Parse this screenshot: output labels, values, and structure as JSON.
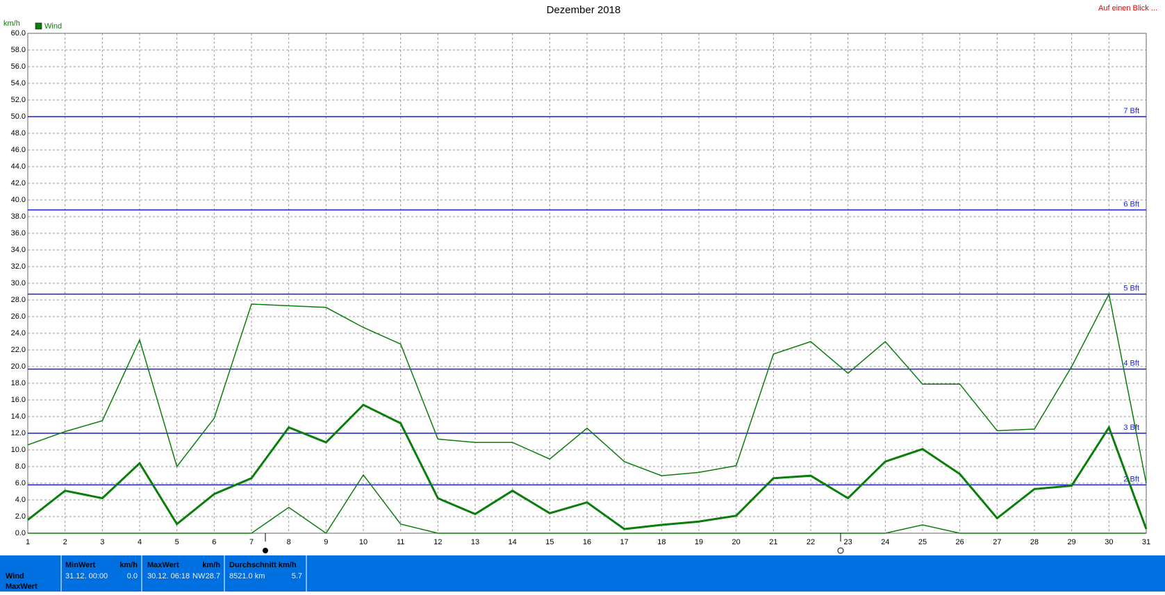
{
  "chart_data": {
    "type": "line",
    "title": "Dezember 2018",
    "corner_note": "Auf einen Blick ...",
    "y_label": "km/h",
    "x": [
      1,
      2,
      3,
      4,
      5,
      6,
      7,
      8,
      9,
      10,
      11,
      12,
      13,
      14,
      15,
      16,
      17,
      18,
      19,
      20,
      21,
      22,
      23,
      24,
      25,
      26,
      27,
      28,
      29,
      30,
      31
    ],
    "series": [
      {
        "color": "#0a7d0a",
        "width": 1.5,
        "values": [
          10.6,
          12.2,
          13.5,
          23.2,
          8.0,
          13.8,
          27.5,
          27.3,
          27.1,
          24.7,
          22.7,
          11.3,
          10.9,
          10.9,
          8.9,
          12.6,
          8.6,
          6.9,
          7.3,
          8.1,
          21.5,
          23.0,
          19.2,
          23.0,
          17.9,
          17.9,
          12.3,
          12.5,
          20.0,
          28.7,
          6.0
        ]
      },
      {
        "name": "Wind",
        "color": "#0a7d0a",
        "width": 3,
        "values": [
          1.6,
          5.1,
          4.2,
          8.4,
          1.1,
          4.7,
          6.6,
          12.7,
          10.9,
          15.4,
          13.2,
          4.2,
          2.3,
          5.1,
          2.4,
          3.7,
          0.5,
          1.0,
          1.4,
          2.1,
          6.6,
          6.9,
          4.2,
          8.6,
          10.1,
          7.1,
          1.8,
          5.3,
          5.7,
          12.7,
          0.5
        ]
      },
      {
        "color": "#0a7d0a",
        "width": 1.5,
        "values": [
          0,
          0,
          0,
          0,
          0,
          0,
          0,
          3.1,
          0,
          7.0,
          1.1,
          0,
          0,
          0,
          0,
          0,
          0,
          0,
          0,
          0,
          0,
          0,
          0,
          0,
          1.0,
          0,
          0,
          0,
          0,
          0,
          0
        ]
      }
    ],
    "xlim": [
      1,
      31
    ],
    "xticks": [
      1,
      2,
      3,
      4,
      5,
      6,
      7,
      8,
      9,
      10,
      11,
      12,
      13,
      14,
      15,
      16,
      17,
      18,
      19,
      20,
      21,
      22,
      23,
      24,
      25,
      26,
      27,
      28,
      29,
      30,
      31
    ],
    "ylim": [
      0,
      60
    ],
    "yticks": [
      {
        "value": 0,
        "label": "0.0"
      },
      {
        "value": 2,
        "label": "2.0"
      },
      {
        "value": 4,
        "label": "4.0"
      },
      {
        "value": 6,
        "label": "6.0"
      },
      {
        "value": 8,
        "label": "8.0"
      },
      {
        "value": 10,
        "label": "10.0"
      },
      {
        "value": 12,
        "label": "12.0"
      },
      {
        "value": 14,
        "label": "14.0"
      },
      {
        "value": 16,
        "label": "16.0"
      },
      {
        "value": 18,
        "label": "18.0"
      },
      {
        "value": 20,
        "label": "20.0"
      },
      {
        "value": 22,
        "label": "22.0"
      },
      {
        "value": 24,
        "label": "24.0"
      },
      {
        "value": 26,
        "label": "26.0"
      },
      {
        "value": 28,
        "label": "28.0"
      },
      {
        "value": 30,
        "label": "30.0"
      },
      {
        "value": 32,
        "label": "32.0"
      },
      {
        "value": 34,
        "label": "34.0"
      },
      {
        "value": 36,
        "label": "36.0"
      },
      {
        "value": 38,
        "label": "38.0"
      },
      {
        "value": 40,
        "label": "40.0"
      },
      {
        "value": 42,
        "label": "42.0"
      },
      {
        "value": 44,
        "label": "44.0"
      },
      {
        "value": 46,
        "label": "46.0"
      },
      {
        "value": 48,
        "label": "48.0"
      },
      {
        "value": 50,
        "label": "50.0"
      },
      {
        "value": 52,
        "label": "52.0"
      },
      {
        "value": 54,
        "label": "54.0"
      },
      {
        "value": 56,
        "label": "56.0"
      },
      {
        "value": 58,
        "label": "58.0"
      },
      {
        "value": 60,
        "label": "60.0"
      }
    ],
    "grid": true,
    "reference_lines": [
      {
        "value": 5.8,
        "label": "2 Bft"
      },
      {
        "value": 12.0,
        "label": "3 Bft"
      },
      {
        "value": 19.7,
        "label": "4 Bft"
      },
      {
        "value": 28.7,
        "label": "5 Bft"
      },
      {
        "value": 38.8,
        "label": "6 Bft"
      },
      {
        "value": 50.0,
        "label": "7 Bft"
      }
    ],
    "reference_color": "#1a1adc"
  },
  "info_panel": {
    "row_labels": [
      "Wind",
      "MaxWert"
    ],
    "min": {
      "header": "MinWert",
      "unit": "km/h",
      "time": "31.12.  00:00",
      "value": "0.0"
    },
    "max": {
      "header": "MaxWert",
      "unit": "km/h",
      "time": "30.12.  06:18",
      "dir": "NW",
      "value": "28.7"
    },
    "avg": {
      "header": "Durchschnitt km/h",
      "distance": "8521.0 km",
      "value": "5.7"
    }
  }
}
